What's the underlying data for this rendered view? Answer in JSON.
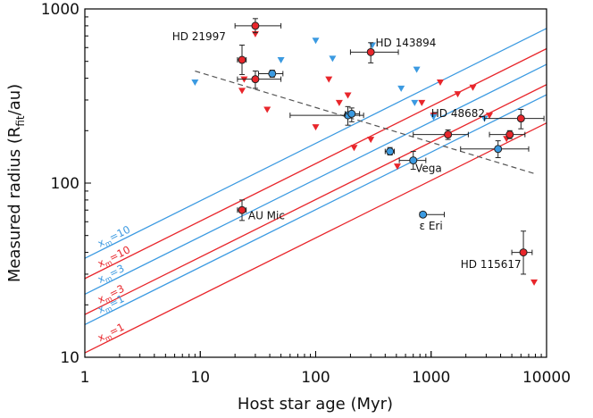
{
  "chart_data": {
    "type": "scatter",
    "xlabel": "Host star age (Myr)",
    "ylabel_main": "Measured radius (R",
    "ylabel_sub": "fit",
    "ylabel_end": "/au)",
    "xscale": "log",
    "yscale": "log",
    "xlim": [
      1,
      10000
    ],
    "ylim": [
      10,
      1000
    ],
    "x_ticks": [
      "1",
      "10",
      "100",
      "1000",
      "10000"
    ],
    "y_ticks": [
      "10",
      "100",
      "1000"
    ],
    "grid": false,
    "colors": {
      "red": "#e8262b",
      "blue": "#3b9ae1",
      "dashed": "#555555"
    },
    "model_lines": [
      {
        "label_pre": "x",
        "label_sub": "m",
        "label_post": "=10",
        "color": "blue",
        "y_at_1": 37.0,
        "slope": 0.33
      },
      {
        "label_pre": "x",
        "label_sub": "m",
        "label_post": "=10",
        "color": "red",
        "y_at_1": 28.3,
        "slope": 0.33
      },
      {
        "label_pre": "x",
        "label_sub": "m",
        "label_post": "=3",
        "color": "blue",
        "y_at_1": 23.0,
        "slope": 0.33
      },
      {
        "label_pre": "x",
        "label_sub": "m",
        "label_post": "=3",
        "color": "red",
        "y_at_1": 17.6,
        "slope": 0.33
      },
      {
        "label_pre": "x",
        "label_sub": "m",
        "label_post": "=1",
        "color": "blue",
        "y_at_1": 15.4,
        "slope": 0.33
      },
      {
        "label_pre": "x",
        "label_sub": "m",
        "label_post": "=1",
        "color": "red",
        "y_at_1": 10.6,
        "slope": 0.33
      }
    ],
    "trend_line": {
      "x": [
        9,
        8000
      ],
      "y": [
        440,
        113
      ]
    },
    "upper_limits_red": [
      [
        30,
        720
      ],
      [
        24,
        395
      ],
      [
        23,
        340
      ],
      [
        38,
        265
      ],
      [
        100,
        210
      ],
      [
        130,
        395
      ],
      [
        160,
        290
      ],
      [
        190,
        320
      ],
      [
        215,
        160
      ],
      [
        300,
        178
      ],
      [
        510,
        125
      ],
      [
        830,
        290
      ],
      [
        1050,
        245
      ],
      [
        1200,
        380
      ],
      [
        1700,
        325
      ],
      [
        2300,
        355
      ],
      [
        3200,
        245
      ],
      [
        4500,
        180
      ],
      [
        7800,
        27
      ]
    ],
    "upper_limits_blue": [
      [
        9,
        380
      ],
      [
        100,
        660
      ],
      [
        50,
        510
      ],
      [
        140,
        520
      ],
      [
        750,
        450
      ],
      [
        550,
        350
      ],
      [
        720,
        290
      ],
      [
        1050,
        240
      ],
      [
        2900,
        235
      ],
      [
        310,
        620
      ]
    ],
    "detections": [
      {
        "x": 30,
        "y": 800,
        "xerr": [
          20,
          50
        ],
        "yerr": [
          730,
          880
        ],
        "color": "red"
      },
      {
        "x": 23,
        "y": 510,
        "xerr": [
          21,
          25
        ],
        "yerr": [
          420,
          620
        ],
        "color": "red"
      },
      {
        "x": 30,
        "y": 395,
        "xerr": [
          21,
          50
        ],
        "yerr": [
          350,
          440
        ],
        "color": "red"
      },
      {
        "x": 300,
        "y": 565,
        "xerr": [
          200,
          520
        ],
        "yerr": [
          490,
          640
        ],
        "color": "red"
      },
      {
        "x": 42,
        "y": 425,
        "xerr": [
          32,
          52
        ],
        "yerr": [
          405,
          445
        ],
        "color": "blue"
      },
      {
        "x": 190,
        "y": 245,
        "xerr": [
          60,
          260
        ],
        "yerr": [
          215,
          275
        ],
        "color": "blue"
      },
      {
        "x": 205,
        "y": 250,
        "xerr": [
          180,
          240
        ],
        "yerr": [
          225,
          270
        ],
        "color": "blue"
      },
      {
        "x": 23,
        "y": 70,
        "xerr": [
          21,
          25
        ],
        "yerr": [
          61,
          80
        ],
        "color": "red"
      },
      {
        "x": 440,
        "y": 152,
        "xerr": [
          400,
          480
        ],
        "yerr": [
          145,
          160
        ],
        "color": "blue"
      },
      {
        "x": 700,
        "y": 135,
        "xerr": [
          530,
          900
        ],
        "yerr": [
          120,
          152
        ],
        "color": "blue"
      },
      {
        "x": 850,
        "y": 66,
        "xerr": [
          800,
          1300
        ],
        "yerr": [
          64,
          68
        ],
        "color": "blue"
      },
      {
        "x": 1400,
        "y": 190,
        "xerr": [
          700,
          2100
        ],
        "yerr": [
          178,
          202
        ],
        "color": "red"
      },
      {
        "x": 3800,
        "y": 157,
        "xerr": [
          1800,
          7000
        ],
        "yerr": [
          140,
          175
        ],
        "color": "blue"
      },
      {
        "x": 4800,
        "y": 190,
        "xerr": [
          3200,
          6500
        ],
        "yerr": [
          180,
          200
        ],
        "color": "red"
      },
      {
        "x": 6000,
        "y": 235,
        "xerr": [
          2900,
          9500
        ],
        "yerr": [
          205,
          265
        ],
        "color": "red"
      },
      {
        "x": 6300,
        "y": 40,
        "xerr": [
          5000,
          7500
        ],
        "yerr": [
          30,
          53
        ],
        "color": "red"
      }
    ],
    "annotations": [
      {
        "text": "HD 21997",
        "x": 5.7,
        "y": 660
      },
      {
        "text": "HD 143894",
        "x": 330,
        "y": 610
      },
      {
        "text": "HD 48682",
        "x": 1000,
        "y": 240
      },
      {
        "text": "Vega",
        "x": 730,
        "y": 116
      },
      {
        "text": "AU Mic",
        "x": 26,
        "y": 62
      },
      {
        "text": "ε Eri",
        "x": 790,
        "y": 54
      },
      {
        "text": "HD 115617",
        "x": 1800,
        "y": 32.5
      }
    ]
  }
}
